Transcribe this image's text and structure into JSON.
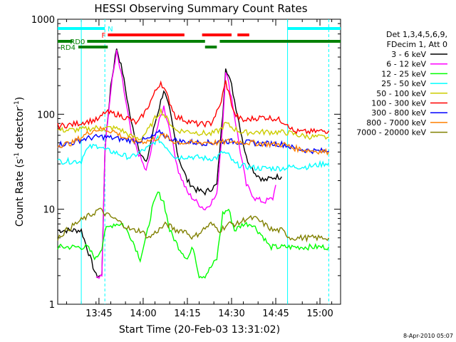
{
  "chart_data": {
    "type": "line",
    "title": "HESSI Observing Summary Count Rates",
    "xlabel": "Start Time (20-Feb-03 13:31:02)",
    "ylabel": "Count Rate (s^-1 detector^-1)",
    "ylabel_parts": {
      "main": "Count Rate (s",
      "exp1": "-1",
      "mid": " detector",
      "exp2": "-1",
      "end": ")"
    },
    "y_scale": "log",
    "ylim": [
      1,
      1000
    ],
    "xlim_minutes": [
      0,
      96
    ],
    "y_ticks": [
      {
        "value": 1,
        "label": "1"
      },
      {
        "value": 10,
        "label": "10"
      },
      {
        "value": 100,
        "label": "100"
      },
      {
        "value": 1000,
        "label": "1000"
      }
    ],
    "x_ticks": [
      {
        "value": 14,
        "label": "13:45"
      },
      {
        "value": 29,
        "label": "14:00"
      },
      {
        "value": 44,
        "label": "14:15"
      },
      {
        "value": 59,
        "label": "14:30"
      },
      {
        "value": 74,
        "label": "14:45"
      },
      {
        "value": 89,
        "label": "15:00"
      }
    ],
    "legend_header": [
      "Det 1,3,4,5,6,9,",
      "FDecim 1, Att 0"
    ],
    "legend_placement": "right",
    "series": [
      {
        "name": "3 - 6 keV",
        "color": "#000000",
        "points": [
          [
            0,
            6
          ],
          [
            8,
            6
          ],
          [
            13,
            2
          ],
          [
            15,
            2
          ],
          [
            16,
            40
          ],
          [
            18,
            200
          ],
          [
            20,
            500
          ],
          [
            22,
            280
          ],
          [
            25,
            80
          ],
          [
            28,
            40
          ],
          [
            30,
            30
          ],
          [
            33,
            80
          ],
          [
            36,
            180
          ],
          [
            38,
            110
          ],
          [
            41,
            35
          ],
          [
            44,
            20
          ],
          [
            47,
            16
          ],
          [
            50,
            15
          ],
          [
            54,
            18
          ],
          [
            56,
            100
          ],
          [
            57,
            320
          ],
          [
            59,
            200
          ],
          [
            62,
            70
          ],
          [
            64,
            35
          ],
          [
            67,
            24
          ],
          [
            70,
            20
          ],
          [
            74,
            22
          ],
          [
            76,
            22
          ]
        ]
      },
      {
        "name": "6 - 12 keV",
        "color": "#ff00ff",
        "points": [
          [
            13,
            2
          ],
          [
            15,
            2
          ],
          [
            16,
            40
          ],
          [
            18,
            180
          ],
          [
            20,
            450
          ],
          [
            22,
            220
          ],
          [
            25,
            60
          ],
          [
            28,
            35
          ],
          [
            30,
            25
          ],
          [
            33,
            60
          ],
          [
            36,
            120
          ],
          [
            38,
            70
          ],
          [
            41,
            25
          ],
          [
            44,
            15
          ],
          [
            47,
            12
          ],
          [
            50,
            10
          ],
          [
            54,
            14
          ],
          [
            56,
            80
          ],
          [
            57,
            290
          ],
          [
            59,
            150
          ],
          [
            62,
            40
          ],
          [
            64,
            18
          ],
          [
            67,
            13
          ],
          [
            70,
            12
          ],
          [
            73,
            13
          ],
          [
            74,
            18
          ]
        ]
      },
      {
        "name": "12 - 25 keV",
        "color": "#00ff00",
        "points": [
          [
            0,
            4
          ],
          [
            8,
            4
          ],
          [
            10,
            4
          ],
          [
            13,
            3
          ],
          [
            15,
            4
          ],
          [
            16,
            6
          ],
          [
            19,
            7
          ],
          [
            22,
            7
          ],
          [
            25,
            5
          ],
          [
            28,
            3
          ],
          [
            30,
            5
          ],
          [
            32,
            10
          ],
          [
            34,
            15
          ],
          [
            36,
            12
          ],
          [
            38,
            6
          ],
          [
            41,
            4
          ],
          [
            44,
            3
          ],
          [
            46,
            4
          ],
          [
            48,
            2
          ],
          [
            50,
            2
          ],
          [
            54,
            3
          ],
          [
            56,
            9
          ],
          [
            58,
            10
          ],
          [
            60,
            6
          ],
          [
            63,
            7
          ],
          [
            66,
            7
          ],
          [
            70,
            5
          ],
          [
            72,
            4
          ],
          [
            74,
            4
          ],
          [
            76,
            4
          ],
          [
            80,
            4
          ],
          [
            85,
            4
          ],
          [
            90,
            4
          ],
          [
            92,
            4
          ]
        ]
      },
      {
        "name": "25 - 50 keV",
        "color": "#00ffff",
        "points": [
          [
            0,
            32
          ],
          [
            4,
            32
          ],
          [
            6,
            32
          ],
          [
            8,
            32
          ],
          [
            9,
            40
          ],
          [
            11,
            45
          ],
          [
            14,
            47
          ],
          [
            16,
            42
          ],
          [
            19,
            40
          ],
          [
            22,
            37
          ],
          [
            25,
            35
          ],
          [
            28,
            40
          ],
          [
            31,
            45
          ],
          [
            34,
            55
          ],
          [
            37,
            45
          ],
          [
            40,
            35
          ],
          [
            44,
            36
          ],
          [
            48,
            35
          ],
          [
            51,
            34
          ],
          [
            54,
            35
          ],
          [
            56,
            40
          ],
          [
            58,
            37
          ],
          [
            60,
            30
          ],
          [
            64,
            28
          ],
          [
            68,
            27
          ],
          [
            72,
            27
          ],
          [
            76,
            27
          ],
          [
            80,
            28
          ],
          [
            85,
            28
          ],
          [
            90,
            30
          ],
          [
            92,
            31
          ]
        ]
      },
      {
        "name": "50 - 100 keV",
        "color": "#cccc00",
        "points": [
          [
            0,
            68
          ],
          [
            5,
            68
          ],
          [
            10,
            70
          ],
          [
            13,
            72
          ],
          [
            15,
            70
          ],
          [
            18,
            72
          ],
          [
            21,
            70
          ],
          [
            25,
            58
          ],
          [
            28,
            55
          ],
          [
            31,
            70
          ],
          [
            33,
            90
          ],
          [
            35,
            110
          ],
          [
            37,
            90
          ],
          [
            40,
            68
          ],
          [
            44,
            66
          ],
          [
            48,
            64
          ],
          [
            52,
            62
          ],
          [
            55,
            68
          ],
          [
            57,
            80
          ],
          [
            60,
            70
          ],
          [
            63,
            64
          ],
          [
            67,
            65
          ],
          [
            70,
            65
          ],
          [
            74,
            65
          ],
          [
            78,
            64
          ],
          [
            82,
            60
          ],
          [
            86,
            58
          ],
          [
            90,
            57
          ],
          [
            92,
            57
          ]
        ]
      },
      {
        "name": "100 - 300 keV",
        "color": "#ff0000",
        "points": [
          [
            0,
            75
          ],
          [
            5,
            78
          ],
          [
            10,
            84
          ],
          [
            14,
            88
          ],
          [
            16,
            105
          ],
          [
            20,
            100
          ],
          [
            24,
            90
          ],
          [
            27,
            80
          ],
          [
            30,
            110
          ],
          [
            33,
            170
          ],
          [
            35,
            220
          ],
          [
            37,
            160
          ],
          [
            40,
            95
          ],
          [
            44,
            85
          ],
          [
            48,
            78
          ],
          [
            52,
            80
          ],
          [
            55,
            120
          ],
          [
            57,
            220
          ],
          [
            60,
            100
          ],
          [
            63,
            85
          ],
          [
            66,
            90
          ],
          [
            70,
            93
          ],
          [
            74,
            90
          ],
          [
            78,
            80
          ],
          [
            80,
            66
          ],
          [
            84,
            65
          ],
          [
            88,
            66
          ],
          [
            92,
            67
          ]
        ]
      },
      {
        "name": "300 - 800 keV",
        "color": "#0000ff",
        "points": [
          [
            0,
            48
          ],
          [
            5,
            50
          ],
          [
            9,
            55
          ],
          [
            12,
            57
          ],
          [
            15,
            58
          ],
          [
            19,
            56
          ],
          [
            23,
            54
          ],
          [
            27,
            52
          ],
          [
            31,
            55
          ],
          [
            33,
            60
          ],
          [
            35,
            65
          ],
          [
            37,
            57
          ],
          [
            41,
            52
          ],
          [
            45,
            51
          ],
          [
            49,
            50
          ],
          [
            53,
            50
          ],
          [
            55,
            52
          ],
          [
            58,
            52
          ],
          [
            62,
            51
          ],
          [
            66,
            50
          ],
          [
            70,
            49
          ],
          [
            74,
            49
          ],
          [
            77,
            48
          ],
          [
            80,
            44
          ],
          [
            84,
            42
          ],
          [
            88,
            41
          ],
          [
            92,
            41
          ]
        ]
      },
      {
        "name": "800 - 7000 keV",
        "color": "#ff8000",
        "points": [
          [
            0,
            47
          ],
          [
            5,
            50
          ],
          [
            9,
            60
          ],
          [
            12,
            68
          ],
          [
            15,
            70
          ],
          [
            19,
            66
          ],
          [
            22,
            58
          ],
          [
            26,
            52
          ],
          [
            30,
            52
          ],
          [
            33,
            55
          ],
          [
            36,
            60
          ],
          [
            39,
            52
          ],
          [
            43,
            50
          ],
          [
            47,
            50
          ],
          [
            51,
            51
          ],
          [
            55,
            50
          ],
          [
            58,
            52
          ],
          [
            62,
            51
          ],
          [
            66,
            50
          ],
          [
            70,
            49
          ],
          [
            74,
            48
          ],
          [
            77,
            48
          ],
          [
            80,
            44
          ],
          [
            84,
            42
          ],
          [
            88,
            41
          ],
          [
            92,
            40
          ]
        ]
      },
      {
        "name": "7000 - 20000 keV",
        "color": "#808000",
        "points": [
          [
            0,
            5
          ],
          [
            3,
            6
          ],
          [
            6,
            7
          ],
          [
            9,
            8
          ],
          [
            12,
            9
          ],
          [
            14,
            10
          ],
          [
            16,
            9
          ],
          [
            19,
            8
          ],
          [
            22,
            7
          ],
          [
            25,
            6
          ],
          [
            28,
            6
          ],
          [
            31,
            5
          ],
          [
            34,
            6
          ],
          [
            37,
            7
          ],
          [
            40,
            6
          ],
          [
            43,
            6
          ],
          [
            46,
            5
          ],
          [
            49,
            6
          ],
          [
            52,
            7
          ],
          [
            55,
            6
          ],
          [
            58,
            7
          ],
          [
            61,
            7
          ],
          [
            64,
            8
          ],
          [
            67,
            8
          ],
          [
            70,
            7
          ],
          [
            73,
            6
          ],
          [
            76,
            6
          ],
          [
            79,
            5
          ],
          [
            82,
            5
          ],
          [
            85,
            5
          ],
          [
            88,
            5
          ],
          [
            92,
            5
          ]
        ]
      }
    ],
    "annotations": {
      "top_left_label": "N",
      "flag_labels": [
        "F",
        "RD0",
        "RD4"
      ],
      "flag_colors": {
        "N": "#00ffff",
        "F": "#ff0000",
        "RD0": "#008000",
        "RD4": "#008000"
      },
      "vertical_markers_minutes": [
        8,
        16,
        78,
        92
      ],
      "vertical_marker_color": "#00ffff"
    },
    "grid": false,
    "timestamp": "8-Apr-2010 05:07"
  }
}
